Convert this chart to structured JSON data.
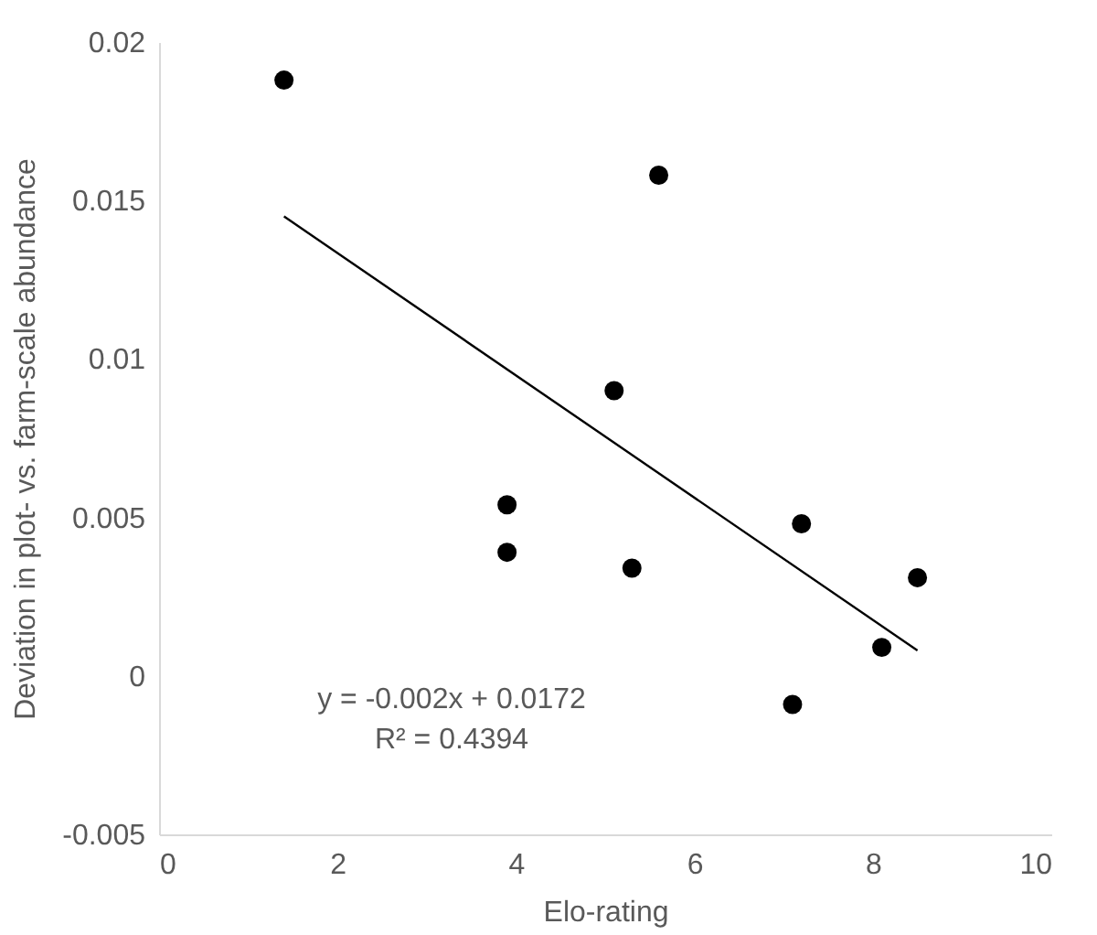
{
  "chart_data": {
    "type": "scatter",
    "xlabel": "Elo-rating",
    "ylabel": "Deviation in plot- vs. farm-scale abundance",
    "xlim": [
      0,
      10
    ],
    "xticks": [
      0,
      2,
      4,
      6,
      8,
      10
    ],
    "ylim": [
      -0.005,
      0.02
    ],
    "yticks": [
      -0.005,
      0,
      0.005,
      0.01,
      0.015,
      0.02
    ],
    "grid": false,
    "series": [
      {
        "marker": "circle",
        "color": "#000000",
        "x": [
          1.4,
          5.6,
          5.1,
          3.9,
          3.9,
          5.3,
          7.2,
          8.5,
          8.1,
          7.1
        ],
        "values": [
          0.0188,
          0.0158,
          0.009,
          0.0054,
          0.0039,
          0.0034,
          0.0048,
          0.0031,
          0.0009,
          -0.0009
        ]
      },
      {
        "type": "line",
        "marker": "none",
        "color": "#000000",
        "x": [
          1.4,
          8.5
        ],
        "values": [
          0.0145,
          0.0008
        ]
      }
    ],
    "annotations": [
      "y = -0.002x + 0.0172",
      "R² = 0.4394"
    ]
  }
}
